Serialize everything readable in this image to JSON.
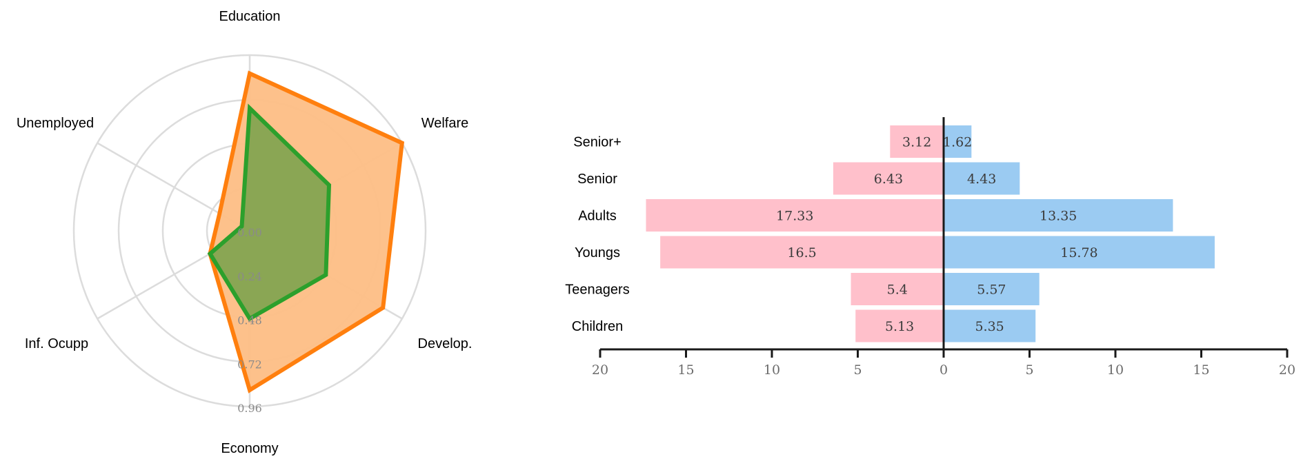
{
  "chart_data": [
    {
      "type": "radar",
      "axes": [
        "Education",
        "Welfare",
        "Develop.",
        "Economy",
        "Inf. Ocupp",
        "Unemployed"
      ],
      "radial_ticks": [
        "0.00",
        "0.24",
        "0.48",
        "0.72",
        "0.96"
      ],
      "radial_tick_values": [
        0,
        0.24,
        0.48,
        0.72,
        0.96
      ],
      "rmax": 0.96,
      "series": [
        {
          "values": [
            0.86,
            0.96,
            0.84,
            0.87,
            0.25,
            0.19
          ],
          "stroke": "#ff7f0e",
          "fill": "#fdbe85"
        },
        {
          "values": [
            0.67,
            0.5,
            0.48,
            0.48,
            0.25,
            0.05
          ],
          "stroke": "#2ca02c",
          "fill": "#8aa654"
        }
      ],
      "grid": true
    },
    {
      "type": "bar",
      "orientation": "horizontal",
      "layout": "diverging",
      "categories": [
        "Senior+",
        "Senior",
        "Adults",
        "Youngs",
        "Teenagers",
        "Children"
      ],
      "series": [
        {
          "side": "left",
          "values": [
            3.12,
            6.43,
            17.33,
            16.5,
            5.4,
            5.13
          ],
          "color": "#ffc0cb"
        },
        {
          "side": "right",
          "values": [
            1.62,
            4.43,
            13.35,
            15.78,
            5.57,
            5.35
          ],
          "color": "#9bcbf2"
        }
      ],
      "xlim": [
        -20,
        20
      ],
      "xticks": [
        {
          "value": -20,
          "label": "20"
        },
        {
          "value": -15,
          "label": "15"
        },
        {
          "value": -10,
          "label": "10"
        },
        {
          "value": -5,
          "label": "5"
        },
        {
          "value": 0,
          "label": "0"
        },
        {
          "value": 5,
          "label": "5"
        },
        {
          "value": 10,
          "label": "10"
        },
        {
          "value": 15,
          "label": "15"
        },
        {
          "value": 20,
          "label": "20"
        }
      ]
    }
  ]
}
